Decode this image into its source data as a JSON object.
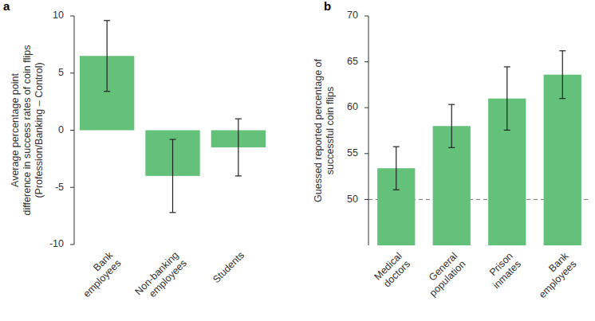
{
  "chart_data": [
    {
      "type": "bar",
      "title": "a",
      "categories": [
        "Bank employees",
        "Non-banking employees",
        "Students"
      ],
      "values": [
        6.5,
        -4,
        -1.5
      ],
      "errors": [
        3.1,
        3.2,
        2.5
      ],
      "color": "#63c17a",
      "ylim": [
        -10,
        10
      ],
      "yticks": [
        -10,
        -5,
        0,
        5,
        10
      ],
      "ylabel": [
        "Average percentage point",
        "difference in success rates of coin flips",
        "(Profession/Banking – Control)"
      ]
    },
    {
      "type": "bar",
      "title": "b",
      "categories": [
        "Medical doctors",
        "General population",
        "Prison inmates",
        "Bank employees"
      ],
      "values": [
        53.4,
        58,
        61,
        63.6
      ],
      "errors": [
        2.35,
        2.35,
        3.45,
        2.6
      ],
      "color": "#63c17a",
      "ylim": [
        45,
        70
      ],
      "yticks": [
        50,
        55,
        60,
        65,
        70
      ],
      "baseline": 50,
      "ylabel": [
        "Guessed reported percentage of",
        "successful coin flips"
      ]
    }
  ]
}
